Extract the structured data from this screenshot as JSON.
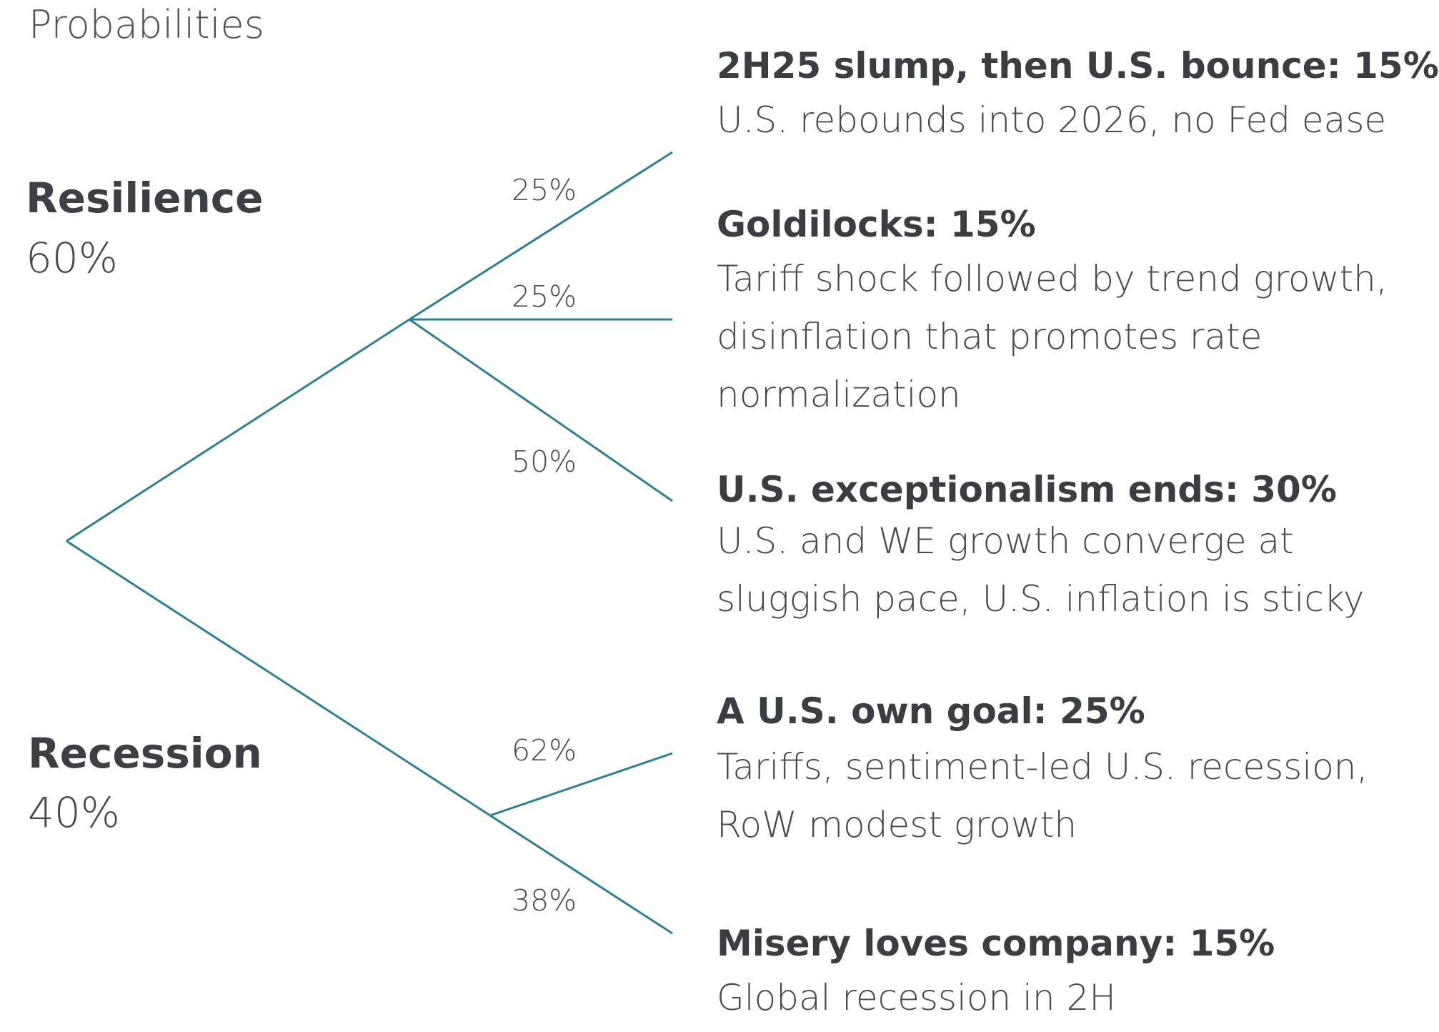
{
  "title": "Probabilities",
  "colors": {
    "line": "#2e7f96",
    "text": "#3f4247"
  },
  "branches": [
    {
      "name": "Resilience",
      "pct": "60%",
      "edges": [
        {
          "label": "25%"
        },
        {
          "label": "25%"
        },
        {
          "label": "50%"
        }
      ]
    },
    {
      "name": "Recession",
      "pct": "40%",
      "edges": [
        {
          "label": "62%"
        },
        {
          "label": "38%"
        }
      ]
    }
  ],
  "scenarios": [
    {
      "title": "2H25 slump, then U.S. bounce: 15%",
      "description": "U.S. rebounds into 2026, no Fed ease"
    },
    {
      "title": "Goldilocks: 15%",
      "description": "Tariff shock followed by trend growth,\ndisinflation that promotes rate\nnormalization"
    },
    {
      "title": "U.S. exceptionalism ends: 30%",
      "description": "U.S. and WE growth converge at\nsluggish pace, U.S. inflation is sticky"
    },
    {
      "title": "A U.S. own goal: 25%",
      "description": "Tariffs, sentiment-led U.S. recession,\nRoW modest growth"
    },
    {
      "title": "Misery loves company: 15%",
      "description": "Global recession in 2H"
    }
  ]
}
